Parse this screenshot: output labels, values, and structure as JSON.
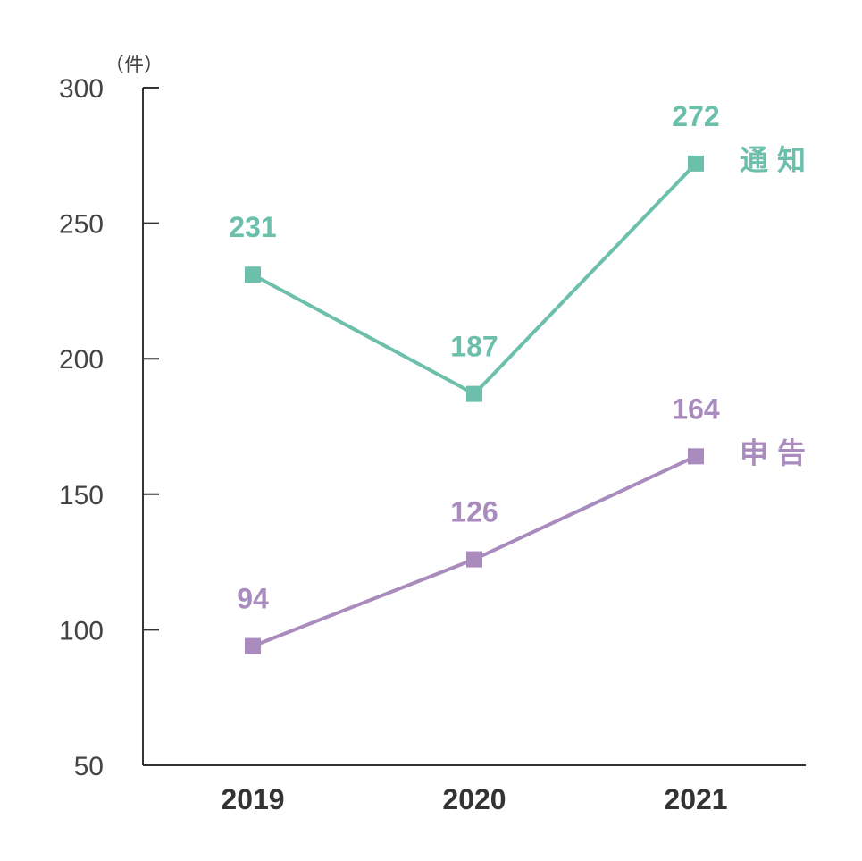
{
  "chart_data": {
    "type": "line",
    "unit": "（件）",
    "categories": [
      "2019",
      "2020",
      "2021"
    ],
    "ylim": [
      50,
      300
    ],
    "yticks": [
      "50",
      "100",
      "150",
      "200",
      "250",
      "300"
    ],
    "grid": false,
    "series": [
      {
        "name": "通知",
        "color": "#6cbfaa",
        "values": [
          231,
          187,
          272
        ]
      },
      {
        "name": "申告",
        "color": "#a98cbd",
        "values": [
          94,
          126,
          164
        ]
      }
    ]
  }
}
